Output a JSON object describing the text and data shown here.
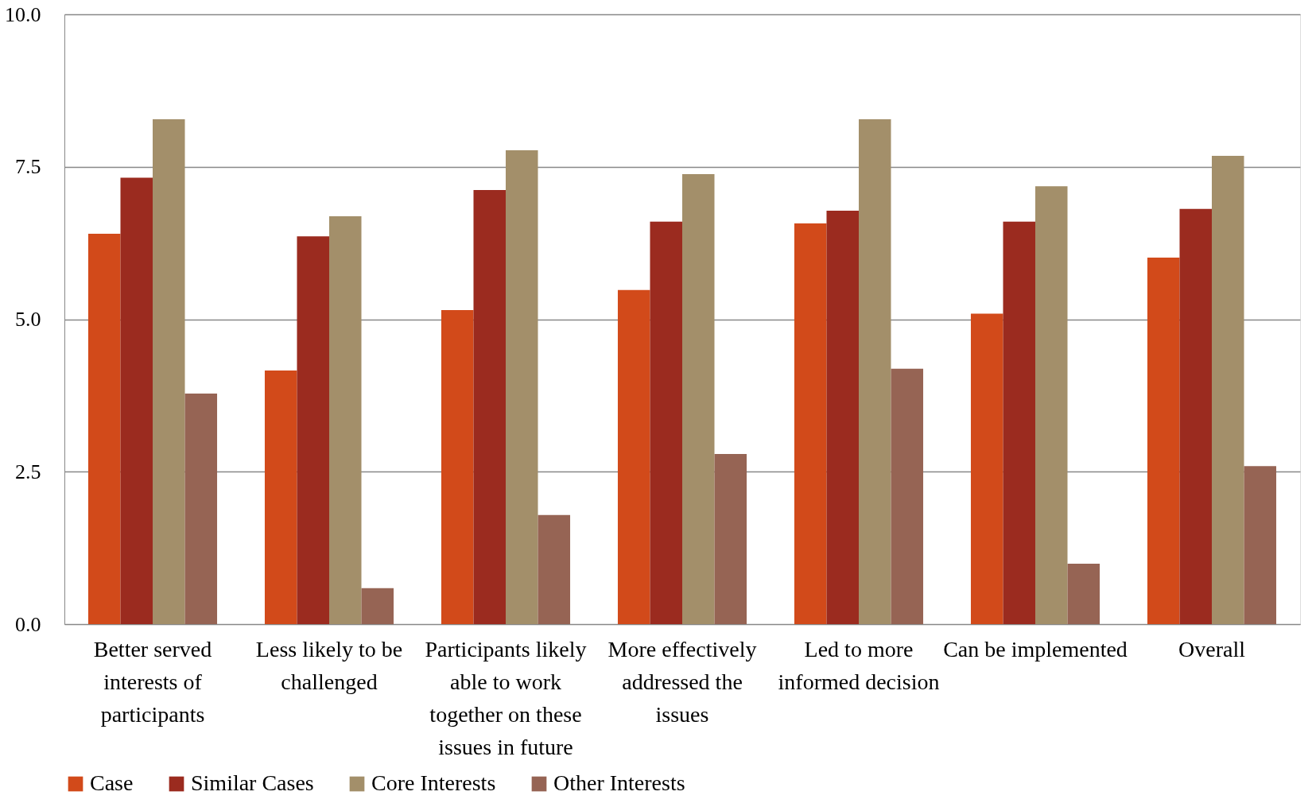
{
  "chart_data": {
    "type": "bar",
    "categories": [
      "Better served interests of participants",
      "Less likely to be challenged",
      "Participants likely able to work together on these issues in future",
      "More effectively addressed the issues",
      "Led to more informed decision",
      "Can be implemented",
      "Overall"
    ],
    "series": [
      {
        "name": "Case",
        "color": "#d24a1a",
        "values": [
          6.4,
          4.16,
          5.15,
          5.48,
          6.57,
          5.09,
          6.01
        ]
      },
      {
        "name": "Similar Cases",
        "color": "#9b2b1f",
        "values": [
          7.32,
          6.36,
          7.12,
          6.6,
          6.78,
          6.6,
          6.81
        ]
      },
      {
        "name": "Core Interests",
        "color": "#a38f6a",
        "values": [
          8.28,
          6.69,
          7.77,
          7.38,
          8.28,
          7.18,
          7.68
        ]
      },
      {
        "name": "Other Interests",
        "color": "#966454",
        "values": [
          3.78,
          0.59,
          1.79,
          2.79,
          4.19,
          0.99,
          2.59
        ]
      }
    ],
    "ylim": [
      0,
      10
    ],
    "yticks": [
      {
        "value": 0,
        "label": "0.0"
      },
      {
        "value": 2.5,
        "label": "2.5"
      },
      {
        "value": 5,
        "label": "5.0"
      },
      {
        "value": 7.5,
        "label": "7.5"
      },
      {
        "value": 10,
        "label": "10.0"
      }
    ],
    "grid": "y",
    "legend": "bottom"
  }
}
